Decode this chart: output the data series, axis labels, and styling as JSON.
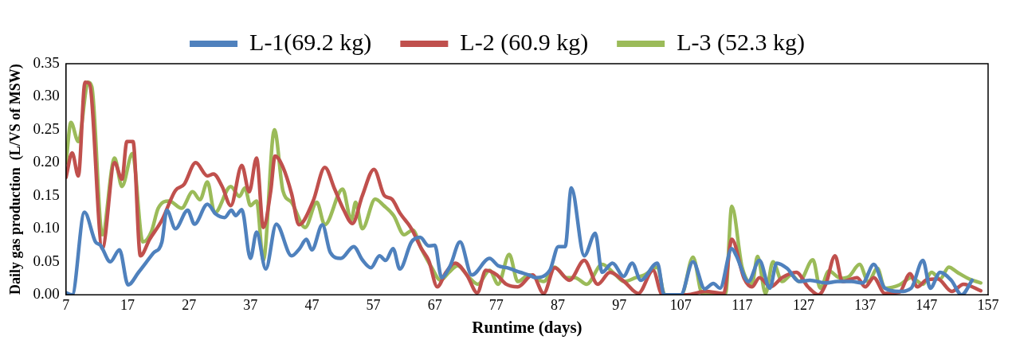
{
  "chart_data": {
    "type": "line",
    "xlabel": "Runtime (days)",
    "ylabel": "Daily gas production  (L/VS of MSW)",
    "xlim": [
      7,
      157
    ],
    "xticks": [
      7,
      17,
      27,
      37,
      47,
      57,
      67,
      77,
      87,
      97,
      107,
      117,
      127,
      137,
      147,
      157
    ],
    "ylim": [
      0,
      0.35
    ],
    "yticks": [
      {
        "value": 0,
        "label": "0.00"
      },
      {
        "value": 0.05,
        "label": "0.05"
      },
      {
        "value": 0.1,
        "label": "0.10"
      },
      {
        "value": 0.15,
        "label": "0.15"
      },
      {
        "value": 0.2,
        "label": "0.20"
      },
      {
        "value": 0.25,
        "label": "0.25"
      },
      {
        "value": 0.3,
        "label": "0.30"
      },
      {
        "value": 0.35,
        "label": "0.35"
      }
    ],
    "grid": false,
    "legend": "top",
    "marker": "none",
    "line_style": "solid",
    "series": [
      {
        "name": "L-1(69.2 kg)",
        "color": "#4f81bd",
        "x": [
          7,
          8,
          10,
          11.8,
          12.6,
          14.2,
          15.7,
          17.1,
          18.8,
          21.2,
          22.6,
          23.4,
          24.8,
          26.8,
          27.9,
          30,
          31.4,
          32.8,
          33.9,
          34.6,
          35.6,
          37,
          38,
          39.5,
          41.2,
          43.7,
          45,
          46.1,
          47,
          48.7,
          50,
          51.7,
          53.8,
          55.2,
          56.6,
          58,
          59,
          60.2,
          61.3,
          63.2,
          64.6,
          66,
          67,
          68.1,
          69.5,
          71.1,
          73,
          75.9,
          77.3,
          78.7,
          80.9,
          82.3,
          83.3,
          85.7,
          87.1,
          88.2,
          89.2,
          91.3,
          93.1,
          94.2,
          95.9,
          97.7,
          99.1,
          100.5,
          103.2,
          104.3,
          107,
          109,
          110.9,
          112.3,
          113.4,
          115.3,
          116,
          118,
          119.8,
          121.5,
          122.6,
          124.3,
          126.3,
          128,
          130.6,
          132.5,
          134.8,
          136.6,
          138.4,
          140.2,
          142.6,
          144.5,
          146.4,
          147.6,
          149.2,
          151,
          152.7,
          154.4
        ],
        "values": [
          0.003,
          0,
          0.125,
          0.08,
          0.075,
          0.05,
          0.068,
          0.015,
          0.034,
          0.063,
          0.08,
          0.128,
          0.1,
          0.128,
          0.107,
          0.137,
          0.122,
          0.117,
          0.128,
          0.12,
          0.129,
          0.055,
          0.095,
          0.039,
          0.107,
          0.059,
          0.07,
          0.084,
          0.068,
          0.106,
          0.064,
          0.055,
          0.073,
          0.053,
          0.041,
          0.059,
          0.052,
          0.07,
          0.039,
          0.08,
          0.087,
          0.074,
          0.075,
          0.026,
          0.044,
          0.08,
          0.03,
          0.055,
          0.044,
          0.041,
          0.034,
          0.03,
          0.026,
          0.037,
          0.073,
          0.073,
          0.162,
          0.059,
          0.093,
          0.034,
          0.048,
          0.028,
          0.048,
          0.022,
          0.048,
          0,
          0,
          0.05,
          0.009,
          0.017,
          0.01,
          0.07,
          0.06,
          0.02,
          0.052,
          0.01,
          0.048,
          0.04,
          0.02,
          0.022,
          0.018,
          0.02,
          0.02,
          0.018,
          0.046,
          0.01,
          0.005,
          0.01,
          0.052,
          0.01,
          0.034,
          0.022,
          0,
          0.022
        ]
      },
      {
        "name": "L-2 (60.9 kg)",
        "color": "#c0504d",
        "x": [
          7,
          8,
          9,
          10.1,
          10.8,
          12.9,
          14.9,
          16.1,
          16.9,
          17.9,
          19.1,
          20.6,
          22.6,
          24.8,
          26.2,
          28.1,
          30,
          31,
          32.4,
          33.8,
          35.6,
          36.8,
          38,
          39.1,
          40.3,
          41,
          42.3,
          43.7,
          44.9,
          47.2,
          49.1,
          50.7,
          52.2,
          53.6,
          55.2,
          57.1,
          58.8,
          60,
          61.3,
          63.2,
          64.8,
          66,
          67.4,
          68.8,
          70.3,
          72.2,
          73.9,
          75.3,
          77.1,
          78.6,
          80.5,
          82.9,
          84.7,
          86.5,
          88.9,
          91.3,
          93.5,
          95.5,
          97.8,
          100.1,
          102.5,
          104,
          108,
          111,
          114,
          115.3,
          117.3,
          118.6,
          119.8,
          121.6,
          123.5,
          125.8,
          127.7,
          129.4,
          130.6,
          132.1,
          133.3,
          135.7,
          137,
          138.4,
          140.2,
          142.6,
          144.3,
          145.5,
          146.9,
          148.8,
          151.1,
          153,
          155.8
        ],
        "values": [
          0.178,
          0.215,
          0.18,
          0.322,
          0.32,
          0.07,
          0.2,
          0.175,
          0.232,
          0.232,
          0.059,
          0.084,
          0.113,
          0.158,
          0.167,
          0.2,
          0.18,
          0.183,
          0.164,
          0.135,
          0.196,
          0.156,
          0.207,
          0.102,
          0.157,
          0.21,
          0.193,
          0.153,
          0.106,
          0.142,
          0.193,
          0.16,
          0.128,
          0.108,
          0.15,
          0.19,
          0.15,
          0.145,
          0.124,
          0.1,
          0.07,
          0.052,
          0.012,
          0.034,
          0.048,
          0.03,
          0.003,
          0.037,
          0.03,
          0.016,
          0.012,
          0.03,
          0.002,
          0.041,
          0.022,
          0.052,
          0.016,
          0.034,
          0.02,
          0.002,
          0.037,
          0,
          0,
          0.005,
          0.002,
          0.084,
          0.025,
          0.012,
          0.026,
          0.012,
          0.026,
          0.034,
          0.012,
          0,
          0.016,
          0.059,
          0.02,
          0.026,
          0.012,
          0.026,
          0.002,
          0.004,
          0.032,
          0.012,
          0.022,
          0.024,
          0.005,
          0.016,
          0.006
        ]
      },
      {
        "name": "L-3 (52.3 kg)",
        "color": "#9bbb59",
        "x": [
          7,
          7.8,
          9,
          10.6,
          11.2,
          12.9,
          14.9,
          16.1,
          17.8,
          19.5,
          20.9,
          22,
          23.8,
          25.8,
          27.6,
          28.8,
          30,
          31.2,
          33.8,
          35.2,
          36.1,
          37,
          38,
          39.1,
          40.9,
          42.3,
          43.7,
          45.9,
          47.8,
          49.1,
          52,
          53.4,
          54.1,
          55.2,
          57.3,
          58.7,
          60.3,
          62,
          63.4,
          64.8,
          66.5,
          67.9,
          69.3,
          70.7,
          72.6,
          74,
          75.9,
          77.3,
          79.1,
          80.5,
          82.3,
          84.7,
          86.5,
          88.4,
          89.8,
          91.7,
          94.2,
          96.4,
          97.8,
          99.7,
          101.1,
          103.2,
          104.4,
          107.1,
          109,
          110.5,
          114.3,
          115.3,
          117,
          118.6,
          119.5,
          120.8,
          122,
          123.5,
          125,
          126.3,
          128.5,
          129.7,
          131.1,
          133,
          134.4,
          136.1,
          137.5,
          139,
          140.2,
          142.6,
          144.5,
          146.4,
          147.8,
          149.2,
          150.6,
          152,
          153.9,
          155.8
        ],
        "values": [
          0.2,
          0.261,
          0.232,
          0.322,
          0.315,
          0.091,
          0.207,
          0.164,
          0.214,
          0.08,
          0.096,
          0.131,
          0.142,
          0.131,
          0.156,
          0.144,
          0.171,
          0.124,
          0.164,
          0.149,
          0.162,
          0.135,
          0.142,
          0.052,
          0.25,
          0.157,
          0.14,
          0.102,
          0.14,
          0.106,
          0.16,
          0.113,
          0.14,
          0.1,
          0.145,
          0.135,
          0.12,
          0.091,
          0.098,
          0.07,
          0.041,
          0.022,
          0.034,
          0.044,
          0.026,
          0.016,
          0.037,
          0.016,
          0.061,
          0.02,
          0.03,
          0.02,
          0.042,
          0.026,
          0.026,
          0.016,
          0.046,
          0.03,
          0.02,
          0.026,
          0.03,
          0.042,
          0,
          0,
          0.057,
          0.002,
          0.002,
          0.134,
          0.041,
          0.017,
          0.058,
          0.002,
          0.05,
          0.02,
          0.03,
          0.02,
          0.053,
          0.01,
          0.036,
          0.025,
          0.028,
          0.046,
          0.02,
          0.04,
          0.01,
          0.015,
          0.026,
          0.016,
          0.034,
          0.024,
          0.042,
          0.034,
          0.024,
          0.018
        ]
      }
    ]
  }
}
